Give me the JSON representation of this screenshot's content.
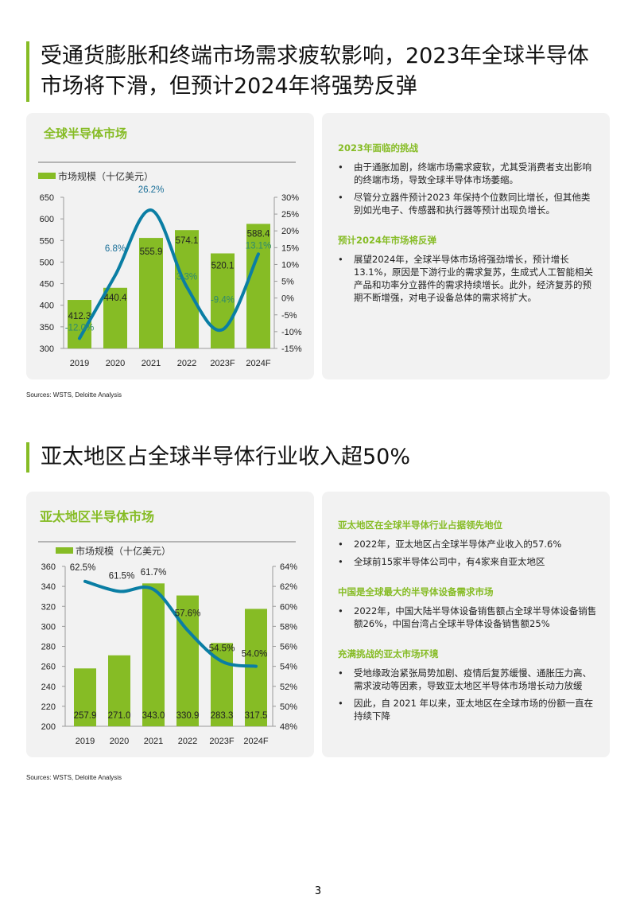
{
  "section1": {
    "title": "受通货膨胀和终端市场需求疲软影响，2023年全球半导体市场将下滑，但预计2024年将强势反弹",
    "chart_title": "全球半导体市场",
    "panel": [
      {
        "heading": "2023年面临的挑战",
        "bullets": [
          "由于通胀加剧，终端市场需求疲软，尤其受消费者支出影响的终端市场，导致全球半导体市场萎缩。",
          "尽管分立器件预计2023 年保持个位数同比增长，但其他类别如光电子、传感器和执行器等预计出现负增长。"
        ]
      },
      {
        "heading": "预计2024年市场将反弹",
        "bullets": [
          "展望2024年，全球半导体市场将强劲增长，预计增长13.1%，原因是下游行业的需求复苏，生成式人工智能相关产品和功率分立器件的需求持续增长。此外，经济复苏的预期不断增强，对电子设备总体的需求将扩大。"
        ]
      }
    ],
    "sources": "Sources: WSTS, Deloitte Analysis"
  },
  "section2": {
    "title": "亚太地区占全球半导体行业收入超50%",
    "chart_title": "亚太地区半导体市场",
    "panel": [
      {
        "heading": "亚太地区在全球半导体行业占据领先地位",
        "bullets": [
          "2022年，亚太地区占全球半导体产业收入的57.6%",
          "全球前15家半导体公司中，有4家来自亚太地区"
        ]
      },
      {
        "heading": "中国是全球最大的半导体设备需求市场",
        "bullets": [
          "2022年，中国大陆半导体设备销售额占全球半导体设备销售额26%，中国台湾占全球半导体设备销售额25%"
        ]
      },
      {
        "heading": "充满挑战的亚太市场环境",
        "bullets": [
          "受地缘政治紧张局势加剧、疫情后复苏缓慢、通胀压力高、需求波动等因素，导致亚太地区半导体市场增长动力放缓",
          "因此，自 2021 年以来，亚太地区在全球市场的份额一直在持续下降"
        ]
      }
    ],
    "sources": "Sources: WSTS, Deloitte Analysis"
  },
  "page_number": "3",
  "colors": {
    "bar": "#86bc25",
    "line": "#0a7ea4",
    "accent": "#86bc25"
  },
  "chart_data": [
    {
      "type": "bar+line",
      "categories": [
        "2019",
        "2020",
        "2021",
        "2022",
        "2023F",
        "2024F"
      ],
      "series": [
        {
          "name": "市场规模（十亿美元）",
          "type": "bar",
          "axis": "left",
          "values": [
            412.3,
            440.4,
            555.9,
            574.1,
            520.1,
            588.4
          ],
          "labels": [
            "412.3",
            "440.4",
            "555.9",
            "574.1",
            "520.1",
            "588.4"
          ]
        },
        {
          "type": "line",
          "axis": "right",
          "values": [
            -12.0,
            6.8,
            26.2,
            3.3,
            -9.4,
            13.1
          ],
          "labels": [
            "-12.0%",
            "6.8%",
            "26.2%",
            "3.3%",
            "-9.4%",
            "13.1%"
          ]
        }
      ],
      "ylim": [
        300,
        650
      ],
      "yticks": [
        "300",
        "350",
        "400",
        "450",
        "500",
        "550",
        "600",
        "650"
      ],
      "y2lim": [
        -15,
        30
      ],
      "y2ticks": [
        "-15%",
        "-10%",
        "-5%",
        "0%",
        "5%",
        "10%",
        "15%",
        "20%",
        "25%",
        "30%"
      ],
      "legend": "top-left",
      "grid": false
    },
    {
      "type": "bar+line",
      "categories": [
        "2019",
        "2020",
        "2021",
        "2022",
        "2023F",
        "2024F"
      ],
      "series": [
        {
          "name": "市场规模（十亿美元）",
          "type": "bar",
          "axis": "left",
          "values": [
            257.9,
            271.0,
            343.0,
            330.9,
            283.3,
            317.5
          ],
          "labels": [
            "257.9",
            "271.0",
            "343.0",
            "330.9",
            "283.3",
            "317.5"
          ]
        },
        {
          "type": "line",
          "axis": "right",
          "values": [
            62.5,
            61.5,
            61.7,
            57.6,
            54.5,
            54.0
          ],
          "labels": [
            "62.5%",
            "61.5%",
            "61.7%",
            "57.6%",
            "54.5%",
            "54.0%"
          ]
        }
      ],
      "ylim": [
        200,
        360
      ],
      "yticks": [
        "200",
        "220",
        "240",
        "260",
        "280",
        "300",
        "320",
        "340",
        "360"
      ],
      "y2lim": [
        48,
        64
      ],
      "y2ticks": [
        "48%",
        "50%",
        "52%",
        "54%",
        "56%",
        "58%",
        "60%",
        "62%",
        "64%"
      ],
      "legend": "top-left",
      "grid": false
    }
  ]
}
